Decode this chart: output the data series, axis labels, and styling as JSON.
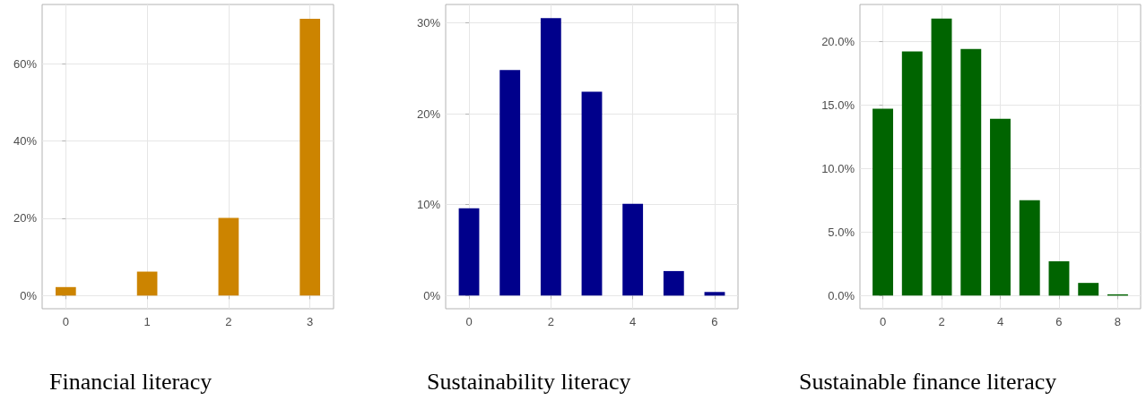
{
  "chart_data": [
    {
      "type": "bar",
      "title": "Financial literacy",
      "x": [
        0,
        1,
        2,
        3
      ],
      "values": [
        2.2,
        6.2,
        20.1,
        71.6
      ],
      "color": "#cc8400",
      "xlim": [
        -0.29,
        3.29
      ],
      "xticks": [
        0,
        1,
        2,
        3
      ],
      "ylim": [
        -3.4,
        75.3
      ],
      "yticks": [
        {
          "value": 0,
          "label": "0%"
        },
        {
          "value": 20,
          "label": "20%"
        },
        {
          "value": 40,
          "label": "40%"
        },
        {
          "value": 60,
          "label": "60%"
        }
      ],
      "grid": true
    },
    {
      "type": "bar",
      "title": "Sustainability literacy",
      "x": [
        0,
        1,
        2,
        3,
        4,
        5,
        6
      ],
      "values": [
        9.6,
        24.8,
        30.5,
        22.4,
        10.1,
        2.7,
        0.4
      ],
      "color": "#00008b",
      "xlim": [
        -0.57,
        6.57
      ],
      "xticks": [
        0,
        2,
        4,
        6
      ],
      "ylim": [
        -1.44,
        32.0
      ],
      "yticks": [
        {
          "value": 0,
          "label": "0%"
        },
        {
          "value": 10,
          "label": "10%"
        },
        {
          "value": 20,
          "label": "20%"
        },
        {
          "value": 30,
          "label": "30%"
        }
      ],
      "grid": true
    },
    {
      "type": "bar",
      "title": "Sustainable finance literacy",
      "x": [
        0,
        1,
        2,
        3,
        4,
        5,
        6,
        7,
        8
      ],
      "values": [
        14.7,
        19.2,
        21.8,
        19.4,
        13.9,
        7.5,
        2.7,
        1.0,
        0.1
      ],
      "color": "#006400",
      "xlim": [
        -0.78,
        8.78
      ],
      "xticks": [
        0,
        2,
        4,
        6,
        8
      ],
      "ylim": [
        -1.03,
        22.9
      ],
      "yticks": [
        {
          "value": 0,
          "label": "0.0%"
        },
        {
          "value": 5,
          "label": "5.0%"
        },
        {
          "value": 10,
          "label": "10.0%"
        },
        {
          "value": 15,
          "label": "15.0%"
        },
        {
          "value": 20,
          "label": "20.0%"
        }
      ],
      "grid": true
    }
  ]
}
